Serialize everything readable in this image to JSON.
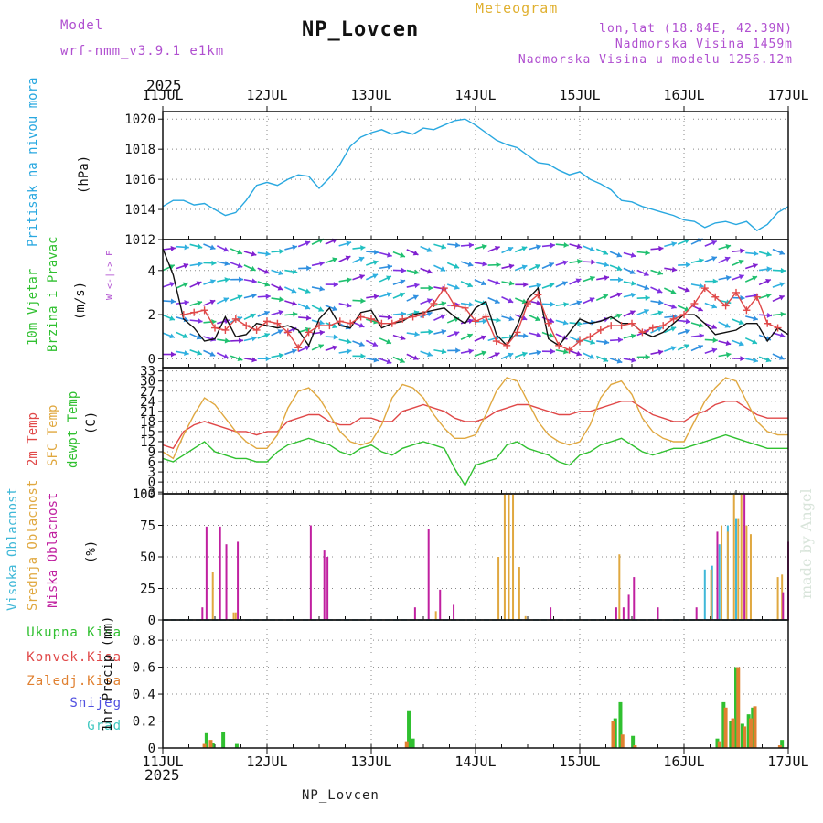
{
  "header": {
    "title": "NP_Lovcen",
    "subtitle": "Meteogram",
    "model_label": "Model",
    "model_value": "wrf-nmm_v3.9.1 e1km",
    "lonlat": "lon,lat (18.84E, 42.39N)",
    "altitude": "Nadmorska Visina 1459m",
    "model_altitude": "Nadmorska Visina u modelu 1256.12m",
    "footer": "NP_Lovcen",
    "watermark": "made by Angel"
  },
  "colors": {
    "pressure": "#29a8e0",
    "temp2m": "#e04848",
    "sfc_temp": "#e0a840",
    "dewpt": "#30c030",
    "wind_speed": "#111111",
    "gust": "#e04848",
    "cloud_high": "#40b8d8",
    "cloud_mid": "#e0a840",
    "cloud_low": "#c020a0",
    "precip_total": "#30c030",
    "precip_conv": "#e04848",
    "precip_strat": "#e08030",
    "snow": "#5050e0",
    "graupel": "#40c8c0",
    "title_purple": "#b04fd0"
  },
  "time_axis": {
    "year": "2025",
    "ticks": [
      "11JUL",
      "12JUL",
      "13JUL",
      "14JUL",
      "15JUL",
      "16JUL",
      "17JUL"
    ]
  },
  "panels": {
    "pressure": {
      "title": "Pritisak na nivou mora",
      "unit": "(hPa)"
    },
    "wind": {
      "title1": "10m Vjetar",
      "title2": "Brzina i Pravac",
      "unit": "(m/s)",
      "compass": "W <-|-> E"
    },
    "temp": {
      "t1": "2m Temp",
      "t2": "SFC Temp",
      "t3": "dewpt Temp",
      "unit": "(C)"
    },
    "cloud": {
      "c1": "Visoka Oblacnost",
      "c2": "Srednja Oblacnost",
      "c3": "Niska Oblacnost",
      "unit": "(%)"
    },
    "precip": {
      "unit": "1hr Precip (mm)",
      "legend": [
        "Ukupna Kisa",
        "Konvek.Kisa",
        "Zaledj.Kisa",
        "Snijeg",
        "Grad"
      ]
    }
  },
  "chart_data": [
    {
      "type": "line",
      "name": "pressure",
      "xlim": [
        0,
        6
      ],
      "ylim": [
        1012,
        1020.5
      ],
      "yticks": [
        1012,
        1014,
        1016,
        1018,
        1020
      ],
      "series": [
        {
          "name": "Pritisak na nivou mora",
          "x": [
            0,
            0.1,
            0.2,
            0.3,
            0.4,
            0.5,
            0.6,
            0.7,
            0.8,
            0.9,
            1.0,
            1.1,
            1.2,
            1.3,
            1.4,
            1.5,
            1.6,
            1.7,
            1.8,
            1.9,
            2.0,
            2.1,
            2.2,
            2.3,
            2.4,
            2.5,
            2.6,
            2.7,
            2.8,
            2.9,
            3.0,
            3.1,
            3.2,
            3.3,
            3.4,
            3.5,
            3.6,
            3.7,
            3.8,
            3.9,
            4.0,
            4.1,
            4.2,
            4.3,
            4.4,
            4.5,
            4.6,
            4.7,
            4.8,
            4.9,
            5.0,
            5.1,
            5.2,
            5.3,
            5.4,
            5.5,
            5.6,
            5.7,
            5.8,
            5.9,
            6.0
          ],
          "values": [
            1014.2,
            1014.6,
            1014.6,
            1014.3,
            1014.4,
            1014.0,
            1013.6,
            1013.8,
            1014.6,
            1015.6,
            1015.8,
            1015.6,
            1016.0,
            1016.3,
            1016.2,
            1015.4,
            1016.1,
            1017.0,
            1018.2,
            1018.8,
            1019.1,
            1019.3,
            1019.0,
            1019.2,
            1019.0,
            1019.4,
            1019.3,
            1019.6,
            1019.9,
            1020.0,
            1019.6,
            1019.1,
            1018.6,
            1018.3,
            1018.1,
            1017.6,
            1017.1,
            1017.0,
            1016.6,
            1016.3,
            1016.5,
            1016.0,
            1015.7,
            1015.3,
            1014.6,
            1014.5,
            1014.2,
            1014.0,
            1013.8,
            1013.6,
            1013.3,
            1013.2,
            1012.8,
            1013.1,
            1013.2,
            1013.0,
            1013.2,
            1012.6,
            1013.0,
            1013.8,
            1014.2
          ]
        }
      ]
    },
    {
      "type": "line",
      "name": "wind",
      "xlim": [
        0,
        6
      ],
      "ylim": [
        -0.4,
        5.4
      ],
      "yticks": [
        0,
        2,
        4
      ],
      "series": [
        {
          "name": "speed",
          "x": [
            0,
            0.1,
            0.2,
            0.3,
            0.4,
            0.5,
            0.6,
            0.7,
            0.8,
            0.9,
            1.0,
            1.1,
            1.2,
            1.3,
            1.4,
            1.5,
            1.6,
            1.7,
            1.8,
            1.9,
            2.0,
            2.1,
            2.2,
            2.3,
            2.4,
            2.5,
            2.6,
            2.7,
            2.8,
            2.9,
            3.0,
            3.1,
            3.2,
            3.3,
            3.4,
            3.5,
            3.6,
            3.7,
            3.8,
            3.9,
            4.0,
            4.1,
            4.2,
            4.3,
            4.4,
            4.5,
            4.6,
            4.7,
            4.8,
            4.9,
            5.0,
            5.1,
            5.2,
            5.3,
            5.4,
            5.5,
            5.6,
            5.7,
            5.8,
            5.9,
            6.0
          ],
          "values": [
            5.0,
            3.8,
            1.8,
            1.4,
            0.8,
            0.9,
            1.9,
            1.0,
            1.1,
            1.6,
            1.5,
            1.4,
            1.5,
            1.3,
            0.6,
            1.8,
            2.3,
            1.5,
            1.4,
            2.1,
            2.2,
            1.4,
            1.6,
            1.7,
            2.0,
            2.1,
            2.2,
            2.3,
            1.9,
            1.6,
            2.3,
            2.6,
            1.1,
            0.6,
            1.5,
            2.7,
            3.2,
            0.9,
            0.6,
            1.2,
            1.8,
            1.6,
            1.7,
            1.9,
            1.6,
            1.6,
            1.2,
            1.0,
            1.2,
            1.6,
            2.0,
            2.0,
            1.6,
            1.1,
            1.2,
            1.3,
            1.6,
            1.6,
            0.8,
            1.4,
            1.1
          ]
        },
        {
          "name": "gust",
          "x": [
            0.2,
            0.3,
            0.4,
            0.5,
            0.6,
            0.7,
            0.8,
            0.9,
            1.0,
            1.1,
            1.2,
            1.3,
            1.4,
            1.5,
            1.6,
            1.7,
            1.8,
            1.9,
            2.0,
            2.1,
            2.2,
            2.3,
            2.4,
            2.5,
            2.6,
            2.7,
            2.8,
            2.9,
            3.0,
            3.1,
            3.2,
            3.3,
            3.4,
            3.5,
            3.6,
            3.7,
            3.8,
            3.9,
            4.0,
            4.1,
            4.2,
            4.3,
            4.4,
            4.5,
            4.6,
            4.7,
            4.8,
            4.9,
            5.0,
            5.1,
            5.2,
            5.3,
            5.4,
            5.5,
            5.6,
            5.7,
            5.8,
            5.9
          ],
          "values": [
            2.0,
            2.1,
            2.2,
            1.4,
            1.3,
            1.8,
            1.5,
            1.3,
            1.7,
            1.6,
            1.2,
            0.5,
            1.2,
            1.5,
            1.5,
            1.7,
            1.6,
            1.9,
            1.8,
            1.6,
            1.6,
            1.8,
            1.9,
            2.0,
            2.5,
            3.2,
            2.4,
            2.3,
            1.7,
            1.9,
            0.8,
            0.6,
            1.2,
            2.5,
            2.9,
            1.6,
            0.6,
            0.4,
            0.8,
            1.0,
            1.3,
            1.5,
            1.5,
            1.6,
            1.2,
            1.4,
            1.5,
            1.8,
            2.0,
            2.5,
            3.2,
            2.8,
            2.4,
            3.0,
            2.2,
            2.8,
            1.6,
            1.4
          ]
        }
      ]
    },
    {
      "type": "line",
      "name": "temperature",
      "xlim": [
        0,
        6
      ],
      "ylim": [
        -3.5,
        34
      ],
      "yticks": [
        -3,
        0,
        3,
        6,
        9,
        12,
        15,
        18,
        21,
        24,
        27,
        30,
        33
      ],
      "series": [
        {
          "name": "2m Temp",
          "x": [
            0,
            0.1,
            0.2,
            0.3,
            0.4,
            0.5,
            0.6,
            0.7,
            0.8,
            0.9,
            1.0,
            1.1,
            1.2,
            1.3,
            1.4,
            1.5,
            1.6,
            1.7,
            1.8,
            1.9,
            2.0,
            2.1,
            2.2,
            2.3,
            2.4,
            2.5,
            2.6,
            2.7,
            2.8,
            2.9,
            3.0,
            3.1,
            3.2,
            3.3,
            3.4,
            3.5,
            3.6,
            3.7,
            3.8,
            3.9,
            4.0,
            4.1,
            4.2,
            4.3,
            4.4,
            4.5,
            4.6,
            4.7,
            4.8,
            4.9,
            5.0,
            5.1,
            5.2,
            5.3,
            5.4,
            5.5,
            5.6,
            5.7,
            5.8,
            5.9,
            6.0
          ],
          "values": [
            11,
            10,
            15,
            17,
            18,
            17,
            16,
            15,
            15,
            14,
            15,
            15,
            18,
            19,
            20,
            20,
            18,
            17,
            17,
            19,
            19,
            18,
            18,
            21,
            22,
            23,
            22,
            21,
            19,
            18,
            18,
            19,
            21,
            22,
            23,
            23,
            22,
            21,
            20,
            20,
            21,
            21,
            22,
            23,
            24,
            24,
            22,
            20,
            19,
            18,
            18,
            20,
            21,
            23,
            24,
            24,
            22,
            20,
            19,
            19,
            19
          ]
        },
        {
          "name": "SFC Temp",
          "x": [
            0,
            0.1,
            0.2,
            0.3,
            0.4,
            0.5,
            0.6,
            0.7,
            0.8,
            0.9,
            1.0,
            1.1,
            1.2,
            1.3,
            1.4,
            1.5,
            1.6,
            1.7,
            1.8,
            1.9,
            2.0,
            2.1,
            2.2,
            2.3,
            2.4,
            2.5,
            2.6,
            2.7,
            2.8,
            2.9,
            3.0,
            3.1,
            3.2,
            3.3,
            3.4,
            3.5,
            3.6,
            3.7,
            3.8,
            3.9,
            4.0,
            4.1,
            4.2,
            4.3,
            4.4,
            4.5,
            4.6,
            4.7,
            4.8,
            4.9,
            5.0,
            5.1,
            5.2,
            5.3,
            5.4,
            5.5,
            5.6,
            5.7,
            5.8,
            5.9,
            6.0
          ],
          "values": [
            9,
            7,
            14,
            20,
            25,
            23,
            19,
            15,
            12,
            10,
            10,
            14,
            22,
            27,
            28,
            25,
            20,
            15,
            12,
            11,
            12,
            17,
            25,
            29,
            28,
            25,
            20,
            16,
            13,
            13,
            14,
            20,
            27,
            31,
            30,
            24,
            18,
            14,
            12,
            11,
            12,
            17,
            25,
            29,
            30,
            26,
            19,
            15,
            13,
            12,
            12,
            18,
            24,
            28,
            31,
            30,
            24,
            18,
            15,
            14,
            14
          ]
        },
        {
          "name": "dewpt Temp",
          "x": [
            0,
            0.1,
            0.2,
            0.3,
            0.4,
            0.5,
            0.6,
            0.7,
            0.8,
            0.9,
            1.0,
            1.1,
            1.2,
            1.3,
            1.4,
            1.5,
            1.6,
            1.7,
            1.8,
            1.9,
            2.0,
            2.1,
            2.2,
            2.3,
            2.4,
            2.5,
            2.6,
            2.7,
            2.8,
            2.9,
            3.0,
            3.1,
            3.2,
            3.3,
            3.4,
            3.5,
            3.6,
            3.7,
            3.8,
            3.9,
            4.0,
            4.1,
            4.2,
            4.3,
            4.4,
            4.5,
            4.6,
            4.7,
            4.8,
            4.9,
            5.0,
            5.1,
            5.2,
            5.3,
            5.4,
            5.5,
            5.6,
            5.7,
            5.8,
            5.9,
            6.0
          ],
          "values": [
            7,
            6,
            8,
            10,
            12,
            9,
            8,
            7,
            7,
            6,
            6,
            9,
            11,
            12,
            13,
            12,
            11,
            9,
            8,
            10,
            11,
            9,
            8,
            10,
            11,
            12,
            11,
            10,
            4,
            -1,
            5,
            6,
            7,
            11,
            12,
            10,
            9,
            8,
            6,
            5,
            8,
            9,
            11,
            12,
            13,
            11,
            9,
            8,
            9,
            10,
            10,
            11,
            12,
            13,
            14,
            13,
            12,
            11,
            10,
            10,
            10
          ]
        }
      ]
    },
    {
      "type": "bar",
      "name": "cloud",
      "xlim": [
        0,
        6
      ],
      "ylim": [
        0,
        100
      ],
      "yticks": [
        0,
        25,
        50,
        75,
        100
      ],
      "series": [
        {
          "name": "Visoka Oblacnost",
          "x": [
            5.2,
            5.27,
            5.34,
            5.42,
            5.5
          ],
          "values": [
            40,
            43,
            60,
            75,
            80
          ]
        },
        {
          "name": "Srednja Oblacnost",
          "x": [
            0.48,
            0.68,
            0.7,
            2.62,
            3.22,
            3.28,
            3.32,
            3.36,
            3.42,
            3.48,
            4.38,
            5.26,
            5.36,
            5.42,
            5.48,
            5.52,
            5.55,
            5.6,
            5.64,
            5.9,
            5.94
          ],
          "values": [
            38,
            6,
            6,
            7,
            50,
            100,
            100,
            100,
            42,
            3,
            52,
            40,
            75,
            70,
            100,
            80,
            100,
            75,
            68,
            34,
            36
          ]
        },
        {
          "name": "Niska Oblacnost",
          "x": [
            0.38,
            0.42,
            0.55,
            0.61,
            0.72,
            1.42,
            1.55,
            1.58,
            2.42,
            2.55,
            2.66,
            2.79,
            3.72,
            4.35,
            4.42,
            4.47,
            4.52,
            4.75,
            5.12,
            5.32,
            5.58,
            5.95,
            6.0
          ],
          "values": [
            10,
            74,
            74,
            60,
            62,
            75,
            55,
            50,
            10,
            72,
            24,
            12,
            10,
            10,
            10,
            20,
            34,
            10,
            10,
            70,
            100,
            22,
            62
          ]
        }
      ]
    },
    {
      "type": "bar",
      "name": "precip",
      "xlim": [
        0,
        6
      ],
      "ylim": [
        0,
        0.95
      ],
      "yticks": [
        0,
        0.2,
        0.4,
        0.6,
        0.8
      ],
      "series": [
        {
          "name": "Ukupna Kisa",
          "x": [
            0.42,
            0.48,
            0.58,
            0.71,
            2.36,
            2.4,
            4.34,
            4.39,
            4.51,
            5.32,
            5.38,
            5.45,
            5.5,
            5.56,
            5.62,
            5.66,
            5.94
          ],
          "values": [
            0.11,
            0.04,
            0.12,
            0.03,
            0.28,
            0.07,
            0.22,
            0.34,
            0.09,
            0.07,
            0.34,
            0.2,
            0.6,
            0.18,
            0.25,
            0.3,
            0.06
          ]
        },
        {
          "name": "Konvek.Kisa",
          "x": [
            0.4,
            0.46,
            2.34,
            4.32,
            4.41,
            4.53,
            5.34,
            5.4,
            5.47,
            5.52,
            5.58,
            5.64,
            5.68,
            5.92
          ],
          "values": [
            0.03,
            0.06,
            0.05,
            0.2,
            0.1,
            0.02,
            0.05,
            0.3,
            0.22,
            0.6,
            0.16,
            0.22,
            0.31,
            0.02
          ]
        }
      ]
    }
  ]
}
